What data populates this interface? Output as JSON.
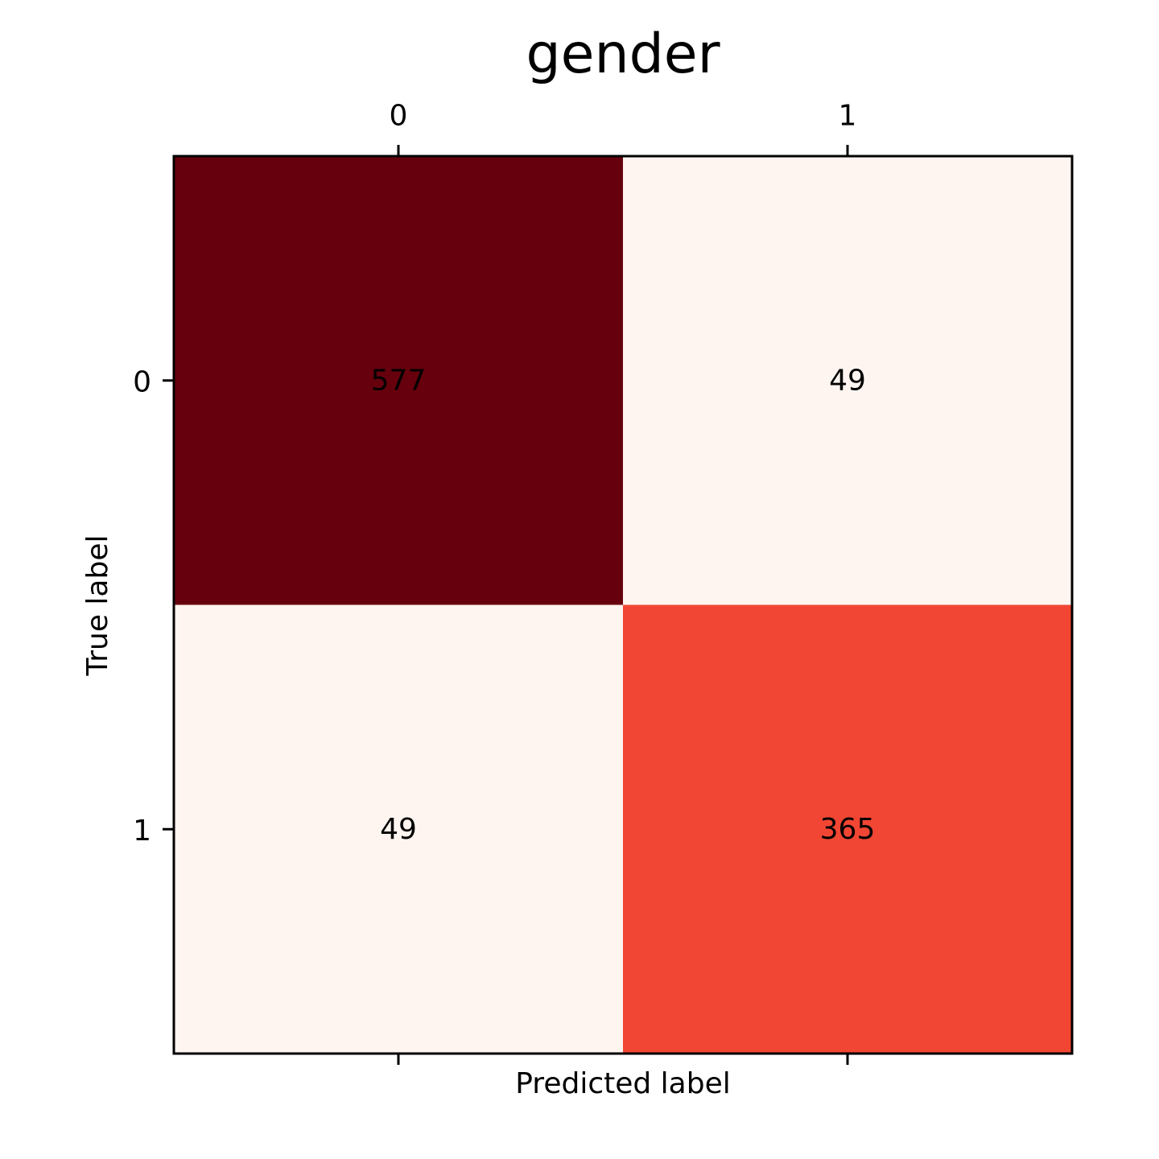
{
  "chart_data": {
    "type": "heatmap",
    "title": "gender",
    "xlabel": "Predicted label",
    "ylabel": "True label",
    "x_categories": [
      "0",
      "1"
    ],
    "y_categories": [
      "0",
      "1"
    ],
    "values": [
      [
        577,
        49
      ],
      [
        49,
        365
      ]
    ],
    "colormap": "Reds",
    "x_ticks_position": "top",
    "grid": false,
    "legend": "none"
  },
  "colors": {
    "cell_colors": [
      [
        "#67000d",
        "#fff5f0"
      ],
      [
        "#fff5f0",
        "#f14633"
      ]
    ],
    "text": "#000000",
    "frame": "#000000",
    "background": "#ffffff"
  }
}
